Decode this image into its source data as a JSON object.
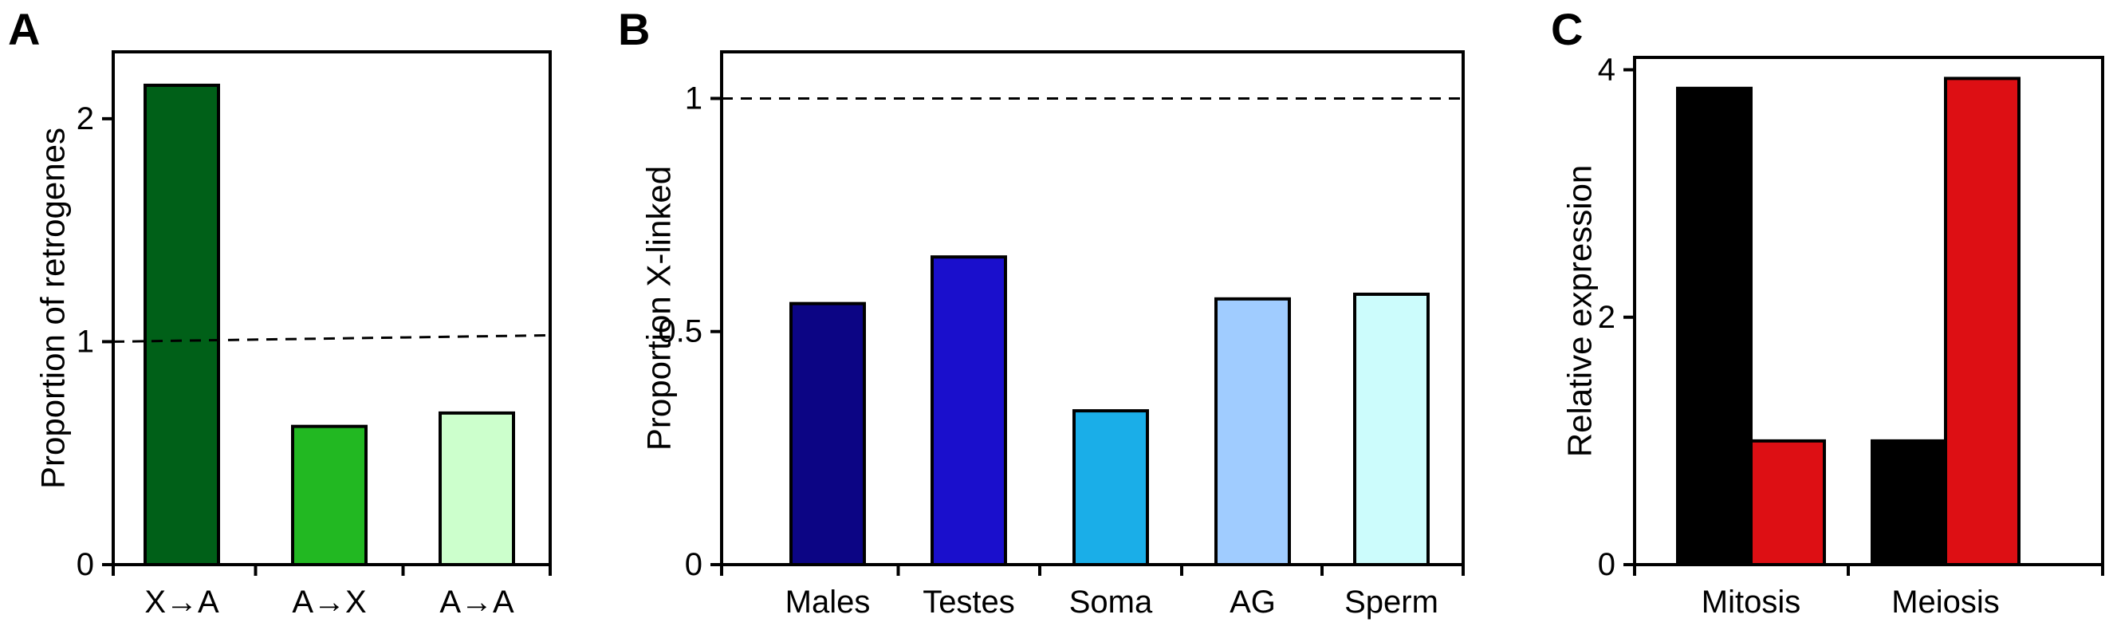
{
  "chart_data": [
    {
      "type": "bar",
      "panel": "A",
      "categories": [
        "X→A",
        "A→X",
        "A→A"
      ],
      "values": [
        2.15,
        0.62,
        0.68
      ],
      "colors": [
        "#006018",
        "#22b822",
        "#ccffcc"
      ],
      "ylabel": "Proportion of retrogenes",
      "ylim": [
        0,
        2.3
      ],
      "yticks": [
        0,
        1,
        2
      ],
      "yticklabels": [
        "0",
        "1",
        "2"
      ],
      "reference_line": {
        "y": 1,
        "style": "dashed"
      }
    },
    {
      "type": "bar",
      "panel": "B",
      "categories": [
        "Males",
        "Testes",
        "Soma",
        "AG",
        "Sperm"
      ],
      "values": [
        0.56,
        0.66,
        0.33,
        0.57,
        0.58
      ],
      "colors": [
        "#0c0584",
        "#1a0fcc",
        "#1aaee8",
        "#a0ccff",
        "#ccfcfc"
      ],
      "ylabel": "Proportion X-linked",
      "ylim": [
        0,
        1.1
      ],
      "yticks": [
        0,
        0.5,
        1
      ],
      "yticklabels": [
        "0",
        "0.5",
        "1"
      ],
      "reference_line": {
        "y": 1,
        "style": "dashed"
      }
    },
    {
      "type": "bar",
      "panel": "C",
      "categories": [
        "Mitosis",
        "Meiosis"
      ],
      "series": [
        {
          "color": "#000000",
          "values": [
            3.85,
            1.0
          ]
        },
        {
          "color": "#dd0f14",
          "values": [
            1.0,
            3.93
          ]
        }
      ],
      "ylabel": "Relative expression",
      "ylim": [
        0,
        4.1
      ],
      "yticks": [
        0,
        2,
        4
      ],
      "yticklabels": [
        "0",
        "2",
        "4"
      ]
    }
  ]
}
